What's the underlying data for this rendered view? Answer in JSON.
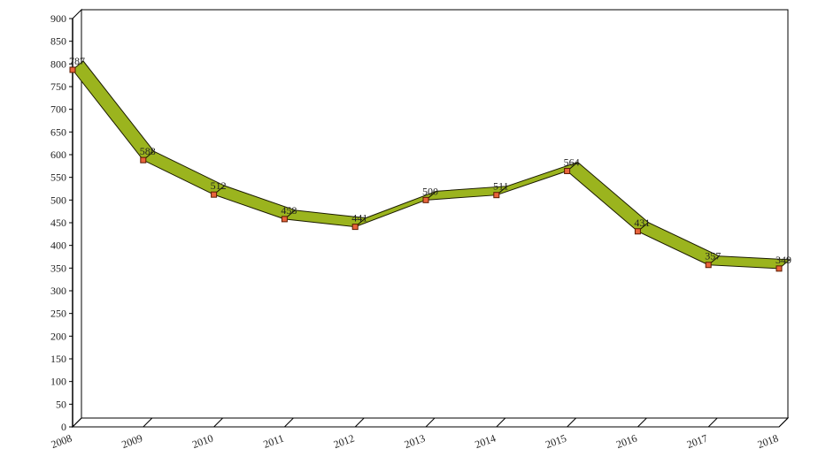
{
  "chart_data": {
    "type": "line3d",
    "categories": [
      "2008",
      "2009",
      "2010",
      "2011",
      "2012",
      "2013",
      "2014",
      "2015",
      "2016",
      "2017",
      "2018"
    ],
    "values": [
      787,
      588,
      512,
      458,
      441,
      500,
      511,
      564,
      431,
      357,
      349
    ],
    "color": "#9bb41e",
    "marker_color": "#e8643c",
    "ylim": [
      0,
      900
    ],
    "yticks": [
      0,
      50,
      100,
      150,
      200,
      250,
      300,
      350,
      400,
      450,
      500,
      550,
      600,
      650,
      700,
      750,
      800,
      850,
      900
    ]
  }
}
